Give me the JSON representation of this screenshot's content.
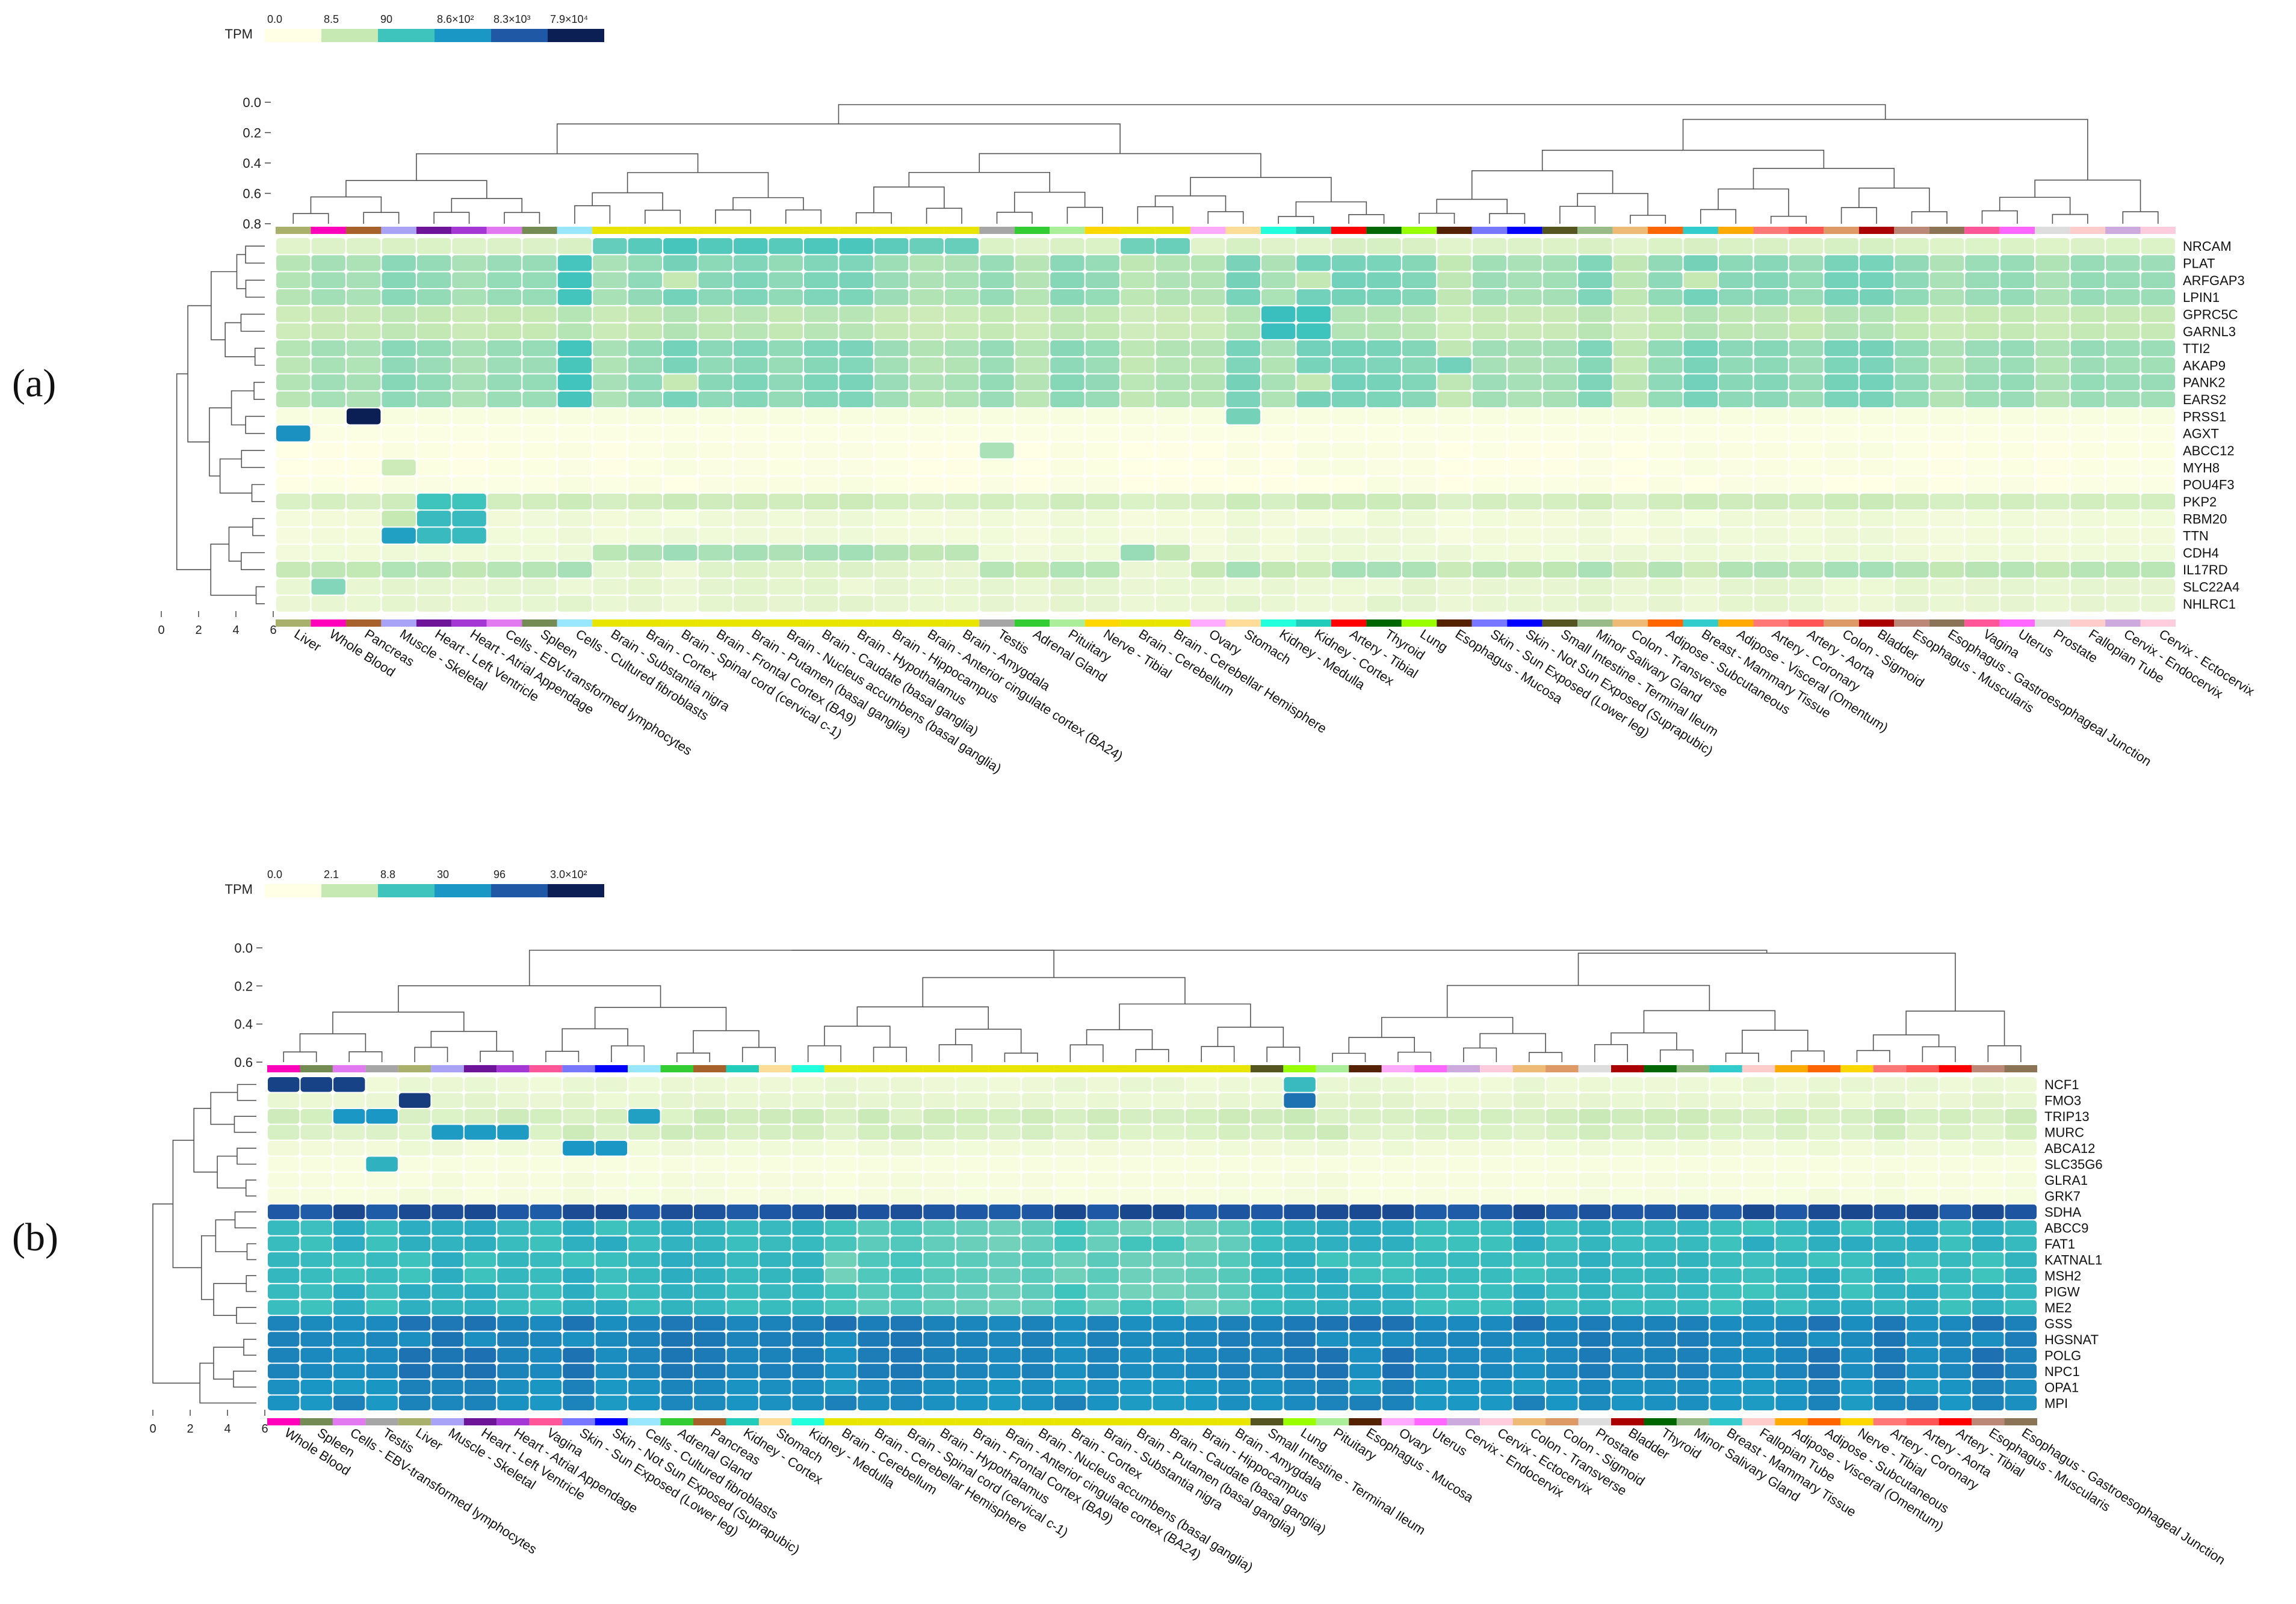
{
  "figure": {
    "panel_a_label": "(a)",
    "panel_b_label": "(b)"
  },
  "colors": {
    "scale": [
      "#ffffe5",
      "#c6e9b4",
      "#3fc3bd",
      "#1a97c4",
      "#1f59a6",
      "#0c1f55"
    ],
    "tissue": {
      "Liver": "#a9b06b",
      "Whole Blood": "#ff00bb",
      "Pancreas": "#a6622a",
      "Muscle - Skeletal": "#a8a3f6",
      "Heart - Left Ventricle": "#6e1499",
      "Heart - Atrial Appendage": "#a538d4",
      "Cells - EBV-transformed lymphocytes": "#e379f0",
      "Spleen": "#748c53",
      "Cells - Cultured fibroblasts": "#99e6ff",
      "Brain": "#e8e600",
      "Testis": "#a6a6a6",
      "Adrenal Gland": "#33cc33",
      "Pituitary": "#aaee99",
      "Nerve - Tibial": "#ffd700",
      "Ovary": "#ffaaff",
      "Stomach": "#ffdd99",
      "Kidney - Medulla": "#22ffdd",
      "Kidney - Cortex": "#22ccbb",
      "Artery - Tibial": "#ff0000",
      "Thyroid": "#006600",
      "Lung": "#99ff00",
      "Esophagus - Mucosa": "#552200",
      "Skin - Sun Exposed (Lower leg)": "#7777ff",
      "Skin - Not Sun Exposed (Suprapubic)": "#0000ff",
      "Small Intestine - Terminal Ileum": "#555522",
      "Minor Salivary Gland": "#99bb88",
      "Colon - Transverse": "#eebb77",
      "Adipose - Subcutaneous": "#ff6600",
      "Breast - Mammary Tissue": "#33cccc",
      "Adipose - Visceral (Omentum)": "#ffaa00",
      "Artery - Coronary": "#ff7777",
      "Artery - Aorta": "#ff5555",
      "Colon - Sigmoid": "#dd9966",
      "Bladder": "#aa0000",
      "Esophagus - Muscularis": "#bb8877",
      "Esophagus - Gastroesophageal Junction": "#8b7355",
      "Vagina": "#ff5599",
      "Uterus": "#ff66ff",
      "Prostate": "#dddddd",
      "Fallopian Tube": "#ffcccc",
      "Cervix - Endocervix": "#ccaadd",
      "Cervix - Ectocervix": "#ffccdd"
    }
  },
  "chart_data": [
    {
      "type": "heatmap",
      "panel": "(a)",
      "legend_title": "TPM",
      "legend_ticks": [
        "0.0",
        "8.5",
        "90",
        "8.6×10²",
        "8.3×10³",
        "7.9×10⁴"
      ],
      "top_dendrogram_axis": [
        "0.0",
        "0.2",
        "0.4",
        "0.6",
        "0.8"
      ],
      "left_dendrogram_axis": [
        "0",
        "2",
        "4",
        "6"
      ],
      "tissues": [
        "Liver",
        "Whole Blood",
        "Pancreas",
        "Muscle - Skeletal",
        "Heart - Left Ventricle",
        "Heart - Atrial Appendage",
        "Cells - EBV-transformed lymphocytes",
        "Spleen",
        "Cells - Cultured fibroblasts",
        "Brain - Substantia nigra",
        "Brain - Cortex",
        "Brain - Spinal cord (cervical c-1)",
        "Brain - Frontal Cortex (BA9)",
        "Brain - Putamen (basal ganglia)",
        "Brain - Nucleus accumbens (basal ganglia)",
        "Brain - Caudate (basal ganglia)",
        "Brain - Hypothalamus",
        "Brain - Hippocampus",
        "Brain - Anterior cingulate cortex (BA24)",
        "Brain - Amygdala",
        "Testis",
        "Adrenal Gland",
        "Pituitary",
        "Nerve - Tibial",
        "Brain - Cerebellum",
        "Brain - Cerebellar Hemisphere",
        "Ovary",
        "Stomach",
        "Kidney - Medulla",
        "Kidney - Cortex",
        "Artery - Tibial",
        "Thyroid",
        "Lung",
        "Esophagus - Mucosa",
        "Skin - Sun Exposed (Lower leg)",
        "Skin - Not Sun Exposed (Suprapubic)",
        "Small Intestine - Terminal Ileum",
        "Minor Salivary Gland",
        "Colon - Transverse",
        "Adipose - Subcutaneous",
        "Breast - Mammary Tissue",
        "Adipose - Visceral (Omentum)",
        "Artery - Coronary",
        "Artery - Aorta",
        "Colon - Sigmoid",
        "Bladder",
        "Esophagus - Muscularis",
        "Esophagus - Gastroesophageal Junction",
        "Vagina",
        "Uterus",
        "Prostate",
        "Fallopian Tube",
        "Cervix - Endocervix",
        "Cervix - Ectocervix"
      ],
      "genes": [
        "NRCAM",
        "PLAT",
        "ARFGAP3",
        "LPIN1",
        "GPRC5C",
        "GARNL3",
        "TTI2",
        "AKAP9",
        "PANK2",
        "EARS2",
        "PRSS1",
        "AGXT",
        "ABCC12",
        "MYH8",
        "POU4F3",
        "PKP2",
        "RBM20",
        "TTN",
        "CDH4",
        "IL17RD",
        "SLC22A4",
        "NHLRC1"
      ]
    },
    {
      "type": "heatmap",
      "panel": "(b)",
      "legend_title": "TPM",
      "legend_ticks": [
        "0.0",
        "2.1",
        "8.8",
        "30",
        "96",
        "3.0×10²"
      ],
      "top_dendrogram_axis": [
        "0.0",
        "0.2",
        "0.4",
        "0.6"
      ],
      "left_dendrogram_axis": [
        "0",
        "2",
        "4",
        "6"
      ],
      "tissues": [
        "Whole Blood",
        "Spleen",
        "Cells - EBV-transformed lymphocytes",
        "Testis",
        "Liver",
        "Muscle - Skeletal",
        "Heart - Left Ventricle",
        "Heart - Atrial Appendage",
        "Vagina",
        "Skin - Sun Exposed (Lower leg)",
        "Skin - Not Sun Exposed (Suprapubic)",
        "Cells - Cultured fibroblasts",
        "Adrenal Gland",
        "Pancreas",
        "Kidney - Cortex",
        "Stomach",
        "Kidney - Medulla",
        "Brain - Cerebellum",
        "Brain - Cerebellar Hemisphere",
        "Brain - Spinal cord (cervical c-1)",
        "Brain - Hypothalamus",
        "Brain - Frontal Cortex (BA9)",
        "Brain - Anterior cingulate cortex (BA24)",
        "Brain - Nucleus accumbens (basal ganglia)",
        "Brain - Cortex",
        "Brain - Substantia nigra",
        "Brain - Putamen (basal ganglia)",
        "Brain - Caudate (basal ganglia)",
        "Brain - Hippocampus",
        "Brain - Amygdala",
        "Small Intestine - Terminal Ileum",
        "Lung",
        "Pituitary",
        "Esophagus - Mucosa",
        "Ovary",
        "Uterus",
        "Cervix - Endocervix",
        "Cervix - Ectocervix",
        "Colon - Transverse",
        "Colon - Sigmoid",
        "Prostate",
        "Bladder",
        "Thyroid",
        "Minor Salivary Gland",
        "Breast - Mammary Tissue",
        "Fallopian Tube",
        "Adipose - Visceral (Omentum)",
        "Adipose - Subcutaneous",
        "Nerve - Tibial",
        "Artery - Coronary",
        "Artery - Aorta",
        "Artery - Tibial",
        "Esophagus - Muscularis",
        "Esophagus - Gastroesophageal Junction"
      ],
      "genes": [
        "NCF1",
        "FMO3",
        "TRIP13",
        "MURC",
        "ABCA12",
        "SLC35G6",
        "GLRA1",
        "GRK7",
        "SDHA",
        "ABCC9",
        "FAT1",
        "KATNAL1",
        "MSH2",
        "PIGW",
        "ME2",
        "GSS",
        "HGSNAT",
        "POLG",
        "NPC1",
        "OPA1",
        "MPI"
      ]
    }
  ]
}
